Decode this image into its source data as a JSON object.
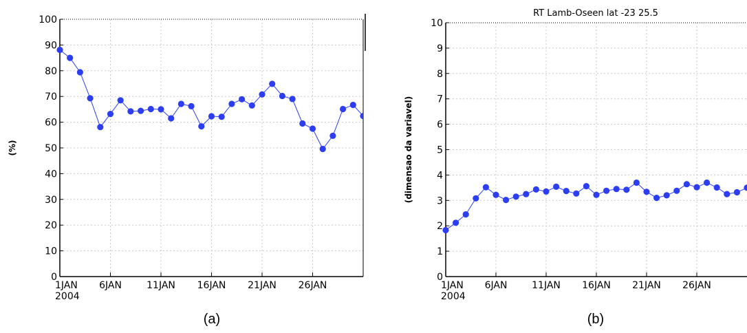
{
  "chart_data": [
    {
      "type": "line",
      "caption": "(a)",
      "title": "",
      "ylabel": "(%)",
      "ylim": [
        0,
        100
      ],
      "yticks": [
        "0",
        "10",
        "20",
        "30",
        "40",
        "50",
        "60",
        "70",
        "80",
        "90",
        "100"
      ],
      "xticks": [
        "1JAN",
        "6JAN",
        "11JAN",
        "16JAN",
        "21JAN",
        "26JAN"
      ],
      "xtick_days": [
        1,
        6,
        11,
        16,
        21,
        26
      ],
      "year_label": "2004",
      "grid": true,
      "color": "#2c3ef0",
      "series": [
        {
          "x": [
            1,
            2,
            3,
            4,
            5,
            6,
            7,
            8,
            9,
            10,
            11,
            12,
            13,
            14,
            15,
            16,
            17,
            18,
            19,
            20,
            21,
            22,
            23,
            24,
            25,
            26,
            27,
            28,
            29,
            30,
            31
          ],
          "values": [
            88.1,
            85,
            79.4,
            69.3,
            58.1,
            63.2,
            68.5,
            64.2,
            64.4,
            65.1,
            65,
            61.5,
            67.1,
            66.2,
            58.4,
            62.3,
            62.1,
            67.1,
            68.9,
            66.5,
            70.8,
            74.9,
            70.2,
            69,
            59.5,
            57.5,
            49.6,
            54.7,
            65.1,
            66.7,
            62.4
          ]
        }
      ]
    },
    {
      "type": "line",
      "caption": "(b)",
      "title": "RT  Lamb-Oseen lat -23 25.5",
      "ylabel": "(dimensao da variavel)",
      "ylim": [
        0,
        10
      ],
      "yticks": [
        "0",
        "1",
        "2",
        "3",
        "4",
        "5",
        "6",
        "7",
        "8",
        "9",
        "10"
      ],
      "xticks": [
        "1JAN",
        "6JAN",
        "11JAN",
        "16JAN",
        "21JAN",
        "26JAN"
      ],
      "xtick_days": [
        1,
        6,
        11,
        16,
        21,
        26
      ],
      "year_label": "2004",
      "grid": true,
      "color": "#2c3ef0",
      "series": [
        {
          "x": [
            1,
            2,
            3,
            4,
            5,
            6,
            7,
            8,
            9,
            10,
            11,
            12,
            13,
            14,
            15,
            16,
            17,
            18,
            19,
            20,
            21,
            22,
            23,
            24,
            25,
            26,
            27,
            28,
            29,
            30,
            31
          ],
          "values": [
            1.83,
            2.12,
            2.45,
            3.08,
            3.52,
            3.22,
            3.02,
            3.15,
            3.25,
            3.43,
            3.35,
            3.54,
            3.37,
            3.27,
            3.56,
            3.22,
            3.38,
            3.45,
            3.42,
            3.7,
            3.34,
            3.1,
            3.2,
            3.38,
            3.64,
            3.52,
            3.7,
            3.51,
            3.25,
            3.32,
            3.5
          ]
        }
      ]
    }
  ]
}
